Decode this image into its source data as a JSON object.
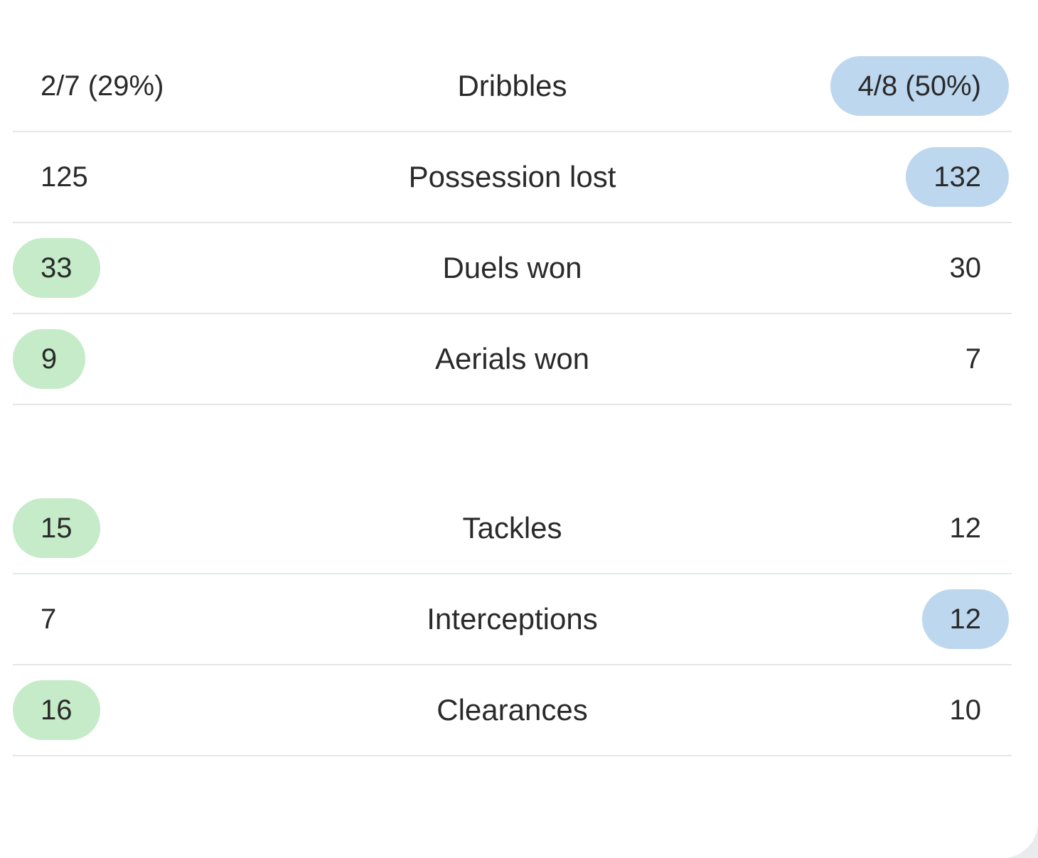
{
  "stats_group_1": [
    {
      "label": "Dribbles",
      "home": "2/7 (29%)",
      "away": "4/8 (50%)",
      "highlight": "away"
    },
    {
      "label": "Possession lost",
      "home": "125",
      "away": "132",
      "highlight": "away"
    },
    {
      "label": "Duels won",
      "home": "33",
      "away": "30",
      "highlight": "home"
    },
    {
      "label": "Aerials won",
      "home": "9",
      "away": "7",
      "highlight": "home"
    }
  ],
  "stats_group_2": [
    {
      "label": "Tackles",
      "home": "15",
      "away": "12",
      "highlight": "home"
    },
    {
      "label": "Interceptions",
      "home": "7",
      "away": "12",
      "highlight": "away"
    },
    {
      "label": "Clearances",
      "home": "16",
      "away": "10",
      "highlight": "home"
    }
  ],
  "colors": {
    "home_highlight": "#c5ebc8",
    "away_highlight": "#bdd7ef",
    "divider": "#e4e6e8",
    "text": "#2a2a2a"
  }
}
